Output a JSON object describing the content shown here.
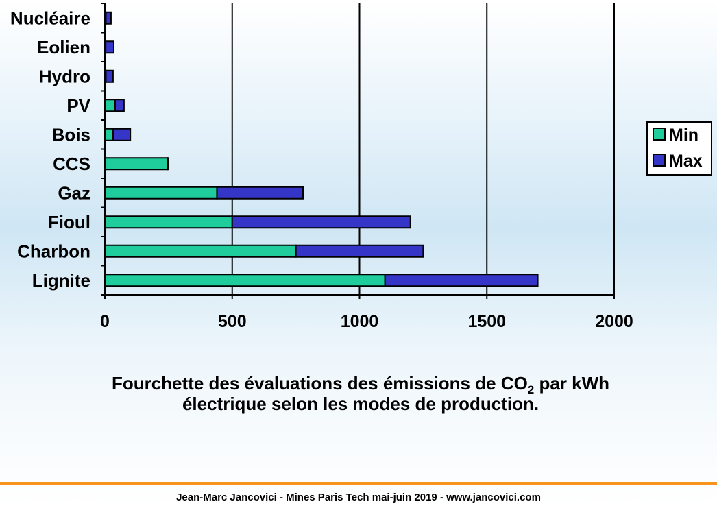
{
  "chart_data": {
    "type": "range-bar",
    "categories": [
      "Nucléaire",
      "Eolien",
      "Hydro",
      "PV",
      "Bois",
      "CCS",
      "Gaz",
      "Fioul",
      "Charbon",
      "Lignite"
    ],
    "series": [
      {
        "name": "Min",
        "color": "#1fcc9b",
        "values": [
          4,
          3,
          4,
          40,
          32,
          245,
          440,
          500,
          750,
          1100
        ]
      },
      {
        "name": "Max",
        "color": "#3535c8",
        "values": [
          24,
          35,
          32,
          75,
          100,
          250,
          778,
          1200,
          1250,
          1700
        ]
      }
    ],
    "xlim": [
      0,
      2000
    ],
    "xticks": [
      0,
      500,
      1000,
      1500,
      2000
    ],
    "grid": true,
    "legend": "right"
  },
  "caption": [
    "Fourchette des évaluations des émissions de CO",
    "2",
    " par kWh",
    "électrique selon les modes de production."
  ],
  "footer": "Jean-Marc Jancovici - Mines Paris Tech mai-juin 2019 - www.jancovici.com"
}
